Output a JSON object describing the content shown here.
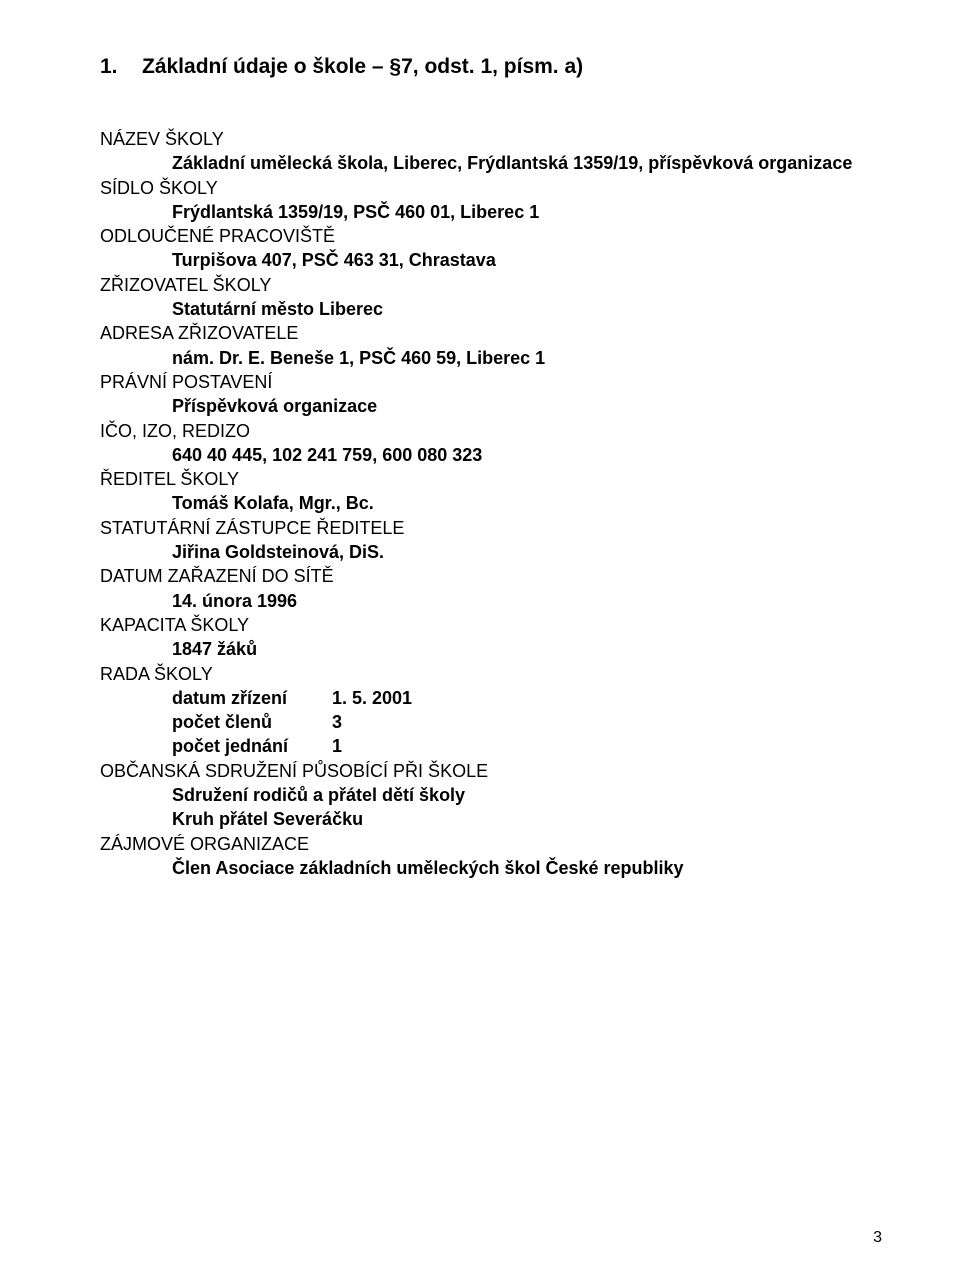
{
  "heading": {
    "num": "1.",
    "text": "Základní údaje o škole – §7, odst. 1, písm. a)"
  },
  "fields": {
    "nazev_label": "NÁZEV ŠKOLY",
    "nazev_value": "Základní umělecká škola, Liberec, Frýdlantská 1359/19, příspěvková organizace",
    "sidlo_label": "SÍDLO ŠKOLY",
    "sidlo_value": "Frýdlantská 1359/19, PSČ 460 01, Liberec 1",
    "odlouc_label": "ODLOUČENÉ PRACOVIŠTĚ",
    "odlouc_value": "Turpišova 407, PSČ 463 31, Chrastava",
    "zrizovatel_label": "ZŘIZOVATEL ŠKOLY",
    "zrizovatel_value": "Statutární město Liberec",
    "adresa_label": "ADRESA ZŘIZOVATELE",
    "adresa_value": "nám. Dr. E. Beneše 1, PSČ 460 59, Liberec 1",
    "pravni_label": "PRÁVNÍ POSTAVENÍ",
    "pravni_value": "Příspěvková organizace",
    "ico_label": "IČO, IZO, REDIZO",
    "ico_value": "640 40 445, 102 241 759, 600 080 323",
    "reditel_label": "ŘEDITEL ŠKOLY",
    "reditel_value": "Tomáš Kolafa, Mgr., Bc.",
    "zastupce_label": "STATUTÁRNÍ ZÁSTUPCE ŘEDITELE",
    "zastupce_value": "Jiřina Goldsteinová, DiS.",
    "datum_label": "DATUM ZAŘAZENÍ DO SÍTĚ",
    "datum_value": "14. února 1996",
    "kapacita_label": "KAPACITA ŠKOLY",
    "kapacita_value": "1847 žáků",
    "rada_label": "RADA ŠKOLY",
    "rada_zrizeni_k": "datum zřízení",
    "rada_zrizeni_v": "1. 5. 2001",
    "rada_clenu_k": "počet členů",
    "rada_clenu_v": "3",
    "rada_jednani_k": "počet jednání",
    "rada_jednani_v": "1",
    "obcan_label": "OBČANSKÁ SDRUŽENÍ PŮSOBÍCÍ PŘI ŠKOLE",
    "obcan_value1": "Sdružení rodičů a přátel dětí školy",
    "obcan_value2": "Kruh přátel Severáčku",
    "zajm_label": "ZÁJMOVÉ ORGANIZACE",
    "zajm_value": "Člen Asociace základních uměleckých škol České republiky"
  },
  "page_number": "3"
}
